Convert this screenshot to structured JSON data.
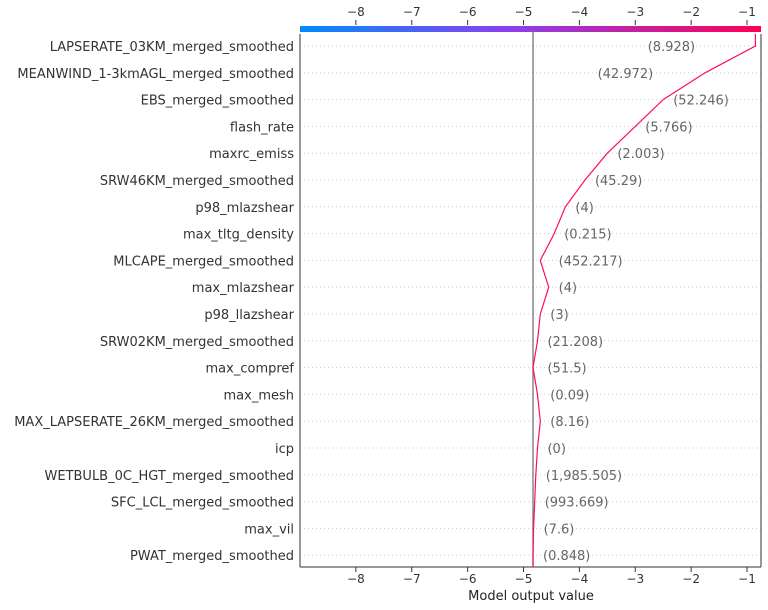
{
  "chart_data": {
    "type": "line",
    "title": "",
    "xlabel": "Model output value",
    "ylabel": "",
    "xlim": [
      -9.0,
      -0.75
    ],
    "xticks": [
      -8,
      -7,
      -6,
      -5,
      -4,
      -3,
      -2,
      -1
    ],
    "xtick_labels": [
      "−8",
      "−7",
      "−6",
      "−5",
      "−4",
      "−3",
      "−2",
      "−1"
    ],
    "base_value": -4.83,
    "colorbar": {
      "from_color": "#008bfb",
      "to_color": "#ff0052",
      "position": "top"
    },
    "line_color": "#ff0d57",
    "features": [
      {
        "name": "LAPSERATE_03KM_merged_smoothed",
        "value_label": "(8.928)",
        "output": -0.85
      },
      {
        "name": "MEANWIND_1-3kmAGL_merged_smoothed",
        "value_label": "(42.972)",
        "output": -1.75
      },
      {
        "name": "EBS_merged_smoothed",
        "value_label": "(52.246)",
        "output": -2.5
      },
      {
        "name": "flash_rate",
        "value_label": "(5.766)",
        "output": -3.0
      },
      {
        "name": "maxrc_emiss",
        "value_label": "(2.003)",
        "output": -3.5
      },
      {
        "name": "SRW46KM_merged_smoothed",
        "value_label": "(45.29)",
        "output": -3.9
      },
      {
        "name": "p98_mlazshear",
        "value_label": "(4)",
        "output": -4.25
      },
      {
        "name": "max_tltg_density",
        "value_label": "(0.215)",
        "output": -4.45
      },
      {
        "name": "MLCAPE_merged_smoothed",
        "value_label": "(452.217)",
        "output": -4.7
      },
      {
        "name": "max_mlazshear",
        "value_label": "(4)",
        "output": -4.55
      },
      {
        "name": "p98_llazshear",
        "value_label": "(3)",
        "output": -4.7
      },
      {
        "name": "SRW02KM_merged_smoothed",
        "value_label": "(21.208)",
        "output": -4.75
      },
      {
        "name": "max_compref",
        "value_label": "(51.5)",
        "output": -4.83
      },
      {
        "name": "max_mesh",
        "value_label": "(0.09)",
        "output": -4.75
      },
      {
        "name": "MAX_LAPSERATE_26KM_merged_smoothed",
        "value_label": "(8.16)",
        "output": -4.7
      },
      {
        "name": "icp",
        "value_label": "(0)",
        "output": -4.75
      },
      {
        "name": "WETBULB_0C_HGT_merged_smoothed",
        "value_label": "(1,985.505)",
        "output": -4.78
      },
      {
        "name": "SFC_LCL_merged_smoothed",
        "value_label": "(993.669)",
        "output": -4.8
      },
      {
        "name": "max_vil",
        "value_label": "(7.6)",
        "output": -4.82
      },
      {
        "name": "PWAT_merged_smoothed",
        "value_label": "(0.848)",
        "output": -4.83
      }
    ]
  }
}
